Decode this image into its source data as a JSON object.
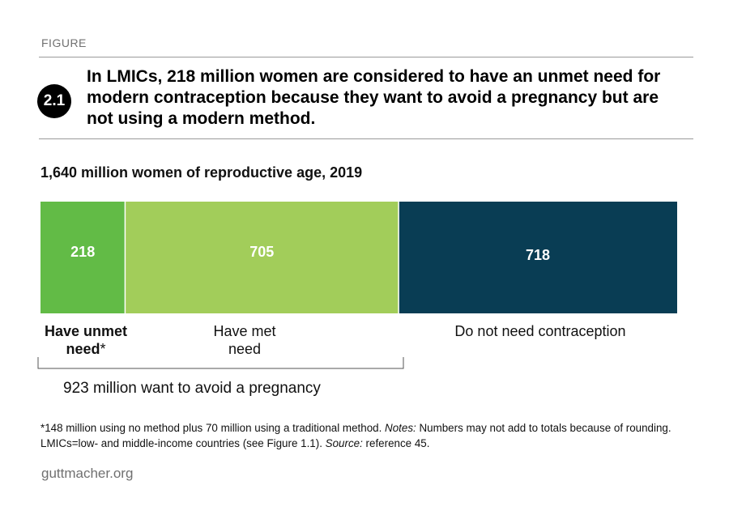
{
  "figure": {
    "label": "FIGURE",
    "number": "2.1",
    "title": "In LMICs, 218 million women are considered to have an unmet need for modern contraception because they want to avoid a pregnancy but are not using a modern method.",
    "subtitle": "1,640 million women of reproductive age, 2019"
  },
  "chart_data": {
    "type": "bar",
    "orientation": "horizontal-stacked",
    "total": 1640,
    "categories": [
      "Have unmet need*",
      "Have met need",
      "Do not need contraception"
    ],
    "values": [
      218,
      705,
      718
    ],
    "colors": [
      "#62bb46",
      "#a2cd5a",
      "#093d54"
    ],
    "group_annotation": "923 million want to avoid a pregnancy"
  },
  "labels": {
    "unmet_line1": "Have unmet",
    "unmet_line2": "need",
    "unmet_star": "*",
    "met_line1": "Have met",
    "met_line2": "need",
    "no_need": "Do not need contraception"
  },
  "footnote": {
    "part1": "*148 million using no method plus 70 million using a traditional method. ",
    "notes_label": "Notes:",
    "part2": " Numbers may not add to totals because of rounding. LMICs=low- and middle-income countries (see Figure 1.1). ",
    "source_label": "Source:",
    "part3": " reference 45."
  },
  "site": "guttmacher.org"
}
